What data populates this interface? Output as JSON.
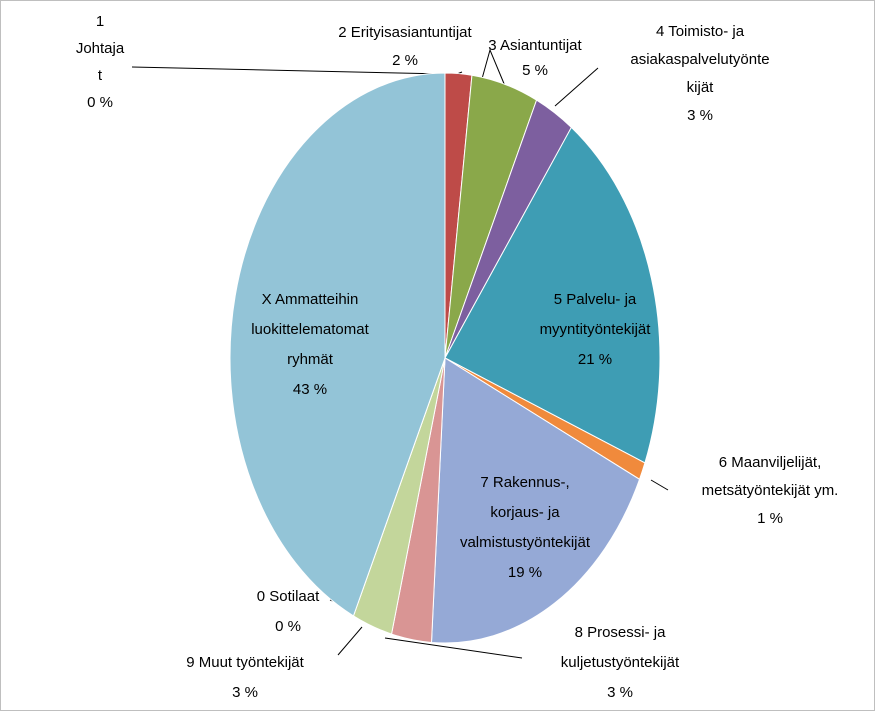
{
  "chart_data": {
    "type": "pie",
    "categories": [
      "1\nJohtaja\nt",
      "2 Erityisasiantuntijat",
      "3 Asiantuntijat",
      "4 Toimisto- ja\nasiakaspalvelutyönte\nkijät",
      "5 Palvelu- ja\nmyyntityöntekijät",
      "6 Maanviljelijät,\nmetsätyöntekijät ym.",
      "7 Rakennus-,\nkorjaus- ja\nvalmistustyöntekijät",
      "8 Prosessi- ja\nkuljetustyöntekijät",
      "9 Muut työntekijät",
      "0 Sotilaat",
      "X Ammatteihin\nluokittelematomat\nryhmät"
    ],
    "values": [
      0,
      2,
      5,
      3,
      21,
      1,
      19,
      3,
      3,
      0,
      43
    ],
    "value_labels": [
      "0 %",
      "2 %",
      "5 %",
      "3 %",
      "21 %",
      "1 %",
      "19 %",
      "3 %",
      "3 %",
      "0 %",
      "43 %"
    ],
    "colors": [
      "#4f81bd",
      "#be4b48",
      "#8aa84a",
      "#7d5f9f",
      "#3e9db4",
      "#f08a3c",
      "#95a9d6",
      "#d99594",
      "#c3d69b",
      "#b7a4cd",
      "#93c4d7"
    ]
  }
}
